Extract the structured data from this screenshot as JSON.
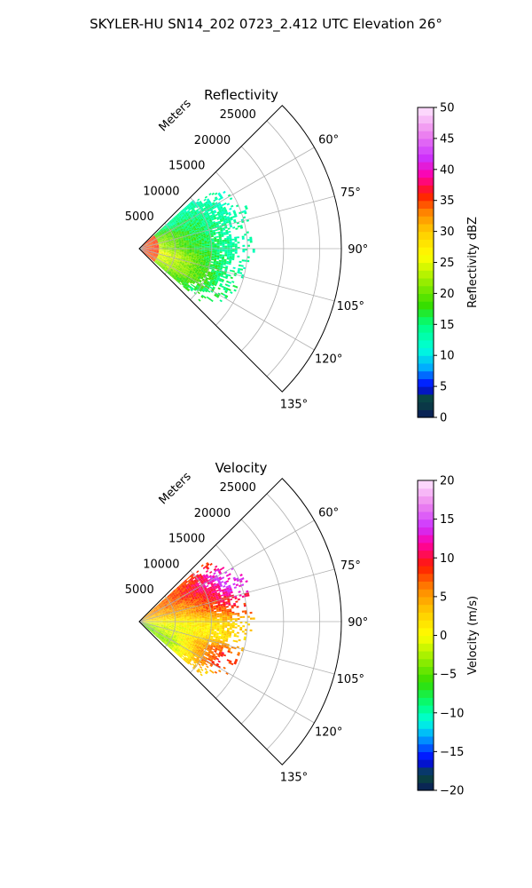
{
  "suptitle": "SKYLER-HU  SN14_202  0723_2.412 UTC Elevation 26°",
  "chart_data": [
    {
      "type": "polar-sector-radar",
      "title": "Reflectivity",
      "field": "reflectivity",
      "range_label": "Meters",
      "r_max": 28000,
      "r_ticks": [
        5000,
        10000,
        15000,
        20000,
        25000
      ],
      "theta_range_deg": [
        45,
        135
      ],
      "theta_ticks_deg": [
        60,
        75,
        90,
        105,
        120,
        135
      ],
      "theta_tick_labels": [
        "60°",
        "75°",
        "90°",
        "105°",
        "120°",
        "135°"
      ],
      "grid": true,
      "data_extent_m": 15500,
      "colorbar": {
        "label": "Reflectivity dBZ",
        "min": 0,
        "max": 50,
        "ticks": [
          0,
          5,
          10,
          15,
          20,
          25,
          30,
          35,
          40,
          45,
          50
        ],
        "stops": [
          [
            0,
            "#0a1a5c"
          ],
          [
            3,
            "#0a4a3a"
          ],
          [
            5,
            "#0000ff"
          ],
          [
            8,
            "#00aaff"
          ],
          [
            11,
            "#00ffdd"
          ],
          [
            15,
            "#00ff80"
          ],
          [
            18,
            "#33dd00"
          ],
          [
            22,
            "#99ee00"
          ],
          [
            26,
            "#ffff00"
          ],
          [
            30,
            "#ffcc00"
          ],
          [
            33,
            "#ff8800"
          ],
          [
            36,
            "#ff1a00"
          ],
          [
            39,
            "#ff00aa"
          ],
          [
            42,
            "#cc33ff"
          ],
          [
            46,
            "#ee88ee"
          ],
          [
            50,
            "#ffe6ff"
          ]
        ]
      },
      "azimuth_profile": [
        {
          "az": 50,
          "rmax": 10000,
          "v_near": 22,
          "v_mid": 14,
          "v_far": 13
        },
        {
          "az": 60,
          "rmax": 12500,
          "v_near": 24,
          "v_mid": 16,
          "v_far": 13
        },
        {
          "az": 70,
          "rmax": 13500,
          "v_near": 25,
          "v_mid": 17,
          "v_far": 13
        },
        {
          "az": 80,
          "rmax": 12500,
          "v_near": 27,
          "v_mid": 18,
          "v_far": 14
        },
        {
          "az": 90,
          "rmax": 13500,
          "v_near": 26,
          "v_mid": 18,
          "v_far": 13
        },
        {
          "az": 100,
          "rmax": 12500,
          "v_near": 30,
          "v_mid": 22,
          "v_far": 14
        },
        {
          "az": 110,
          "rmax": 12000,
          "v_near": 28,
          "v_mid": 22,
          "v_far": 15
        },
        {
          "az": 120,
          "rmax": 11500,
          "v_near": 26,
          "v_mid": 22,
          "v_far": 16
        },
        {
          "az": 128,
          "rmax": 9000,
          "v_near": 24,
          "v_mid": 20,
          "v_far": 16
        }
      ]
    },
    {
      "type": "polar-sector-radar",
      "title": "Velocity",
      "field": "velocity",
      "range_label": "Meters",
      "r_max": 28000,
      "r_ticks": [
        5000,
        10000,
        15000,
        20000,
        25000
      ],
      "theta_range_deg": [
        45,
        135
      ],
      "theta_ticks_deg": [
        60,
        75,
        90,
        105,
        120,
        135
      ],
      "theta_tick_labels": [
        "60°",
        "75°",
        "90°",
        "105°",
        "120°",
        "135°"
      ],
      "grid": true,
      "data_extent_m": 15500,
      "colorbar": {
        "label": "Velocity (m/s)",
        "min": -20,
        "max": 20,
        "ticks": [
          -20,
          -15,
          -10,
          -5,
          0,
          5,
          10,
          15,
          20
        ],
        "stops": [
          [
            -20,
            "#0a1a5c"
          ],
          [
            -18,
            "#0a4a3a"
          ],
          [
            -16,
            "#0000ff"
          ],
          [
            -13,
            "#00aaff"
          ],
          [
            -11,
            "#00ffdd"
          ],
          [
            -9,
            "#00ff80"
          ],
          [
            -6,
            "#33dd00"
          ],
          [
            -3,
            "#99ee00"
          ],
          [
            0,
            "#ffff00"
          ],
          [
            3,
            "#ffcc00"
          ],
          [
            6,
            "#ff8800"
          ],
          [
            9,
            "#ff1a00"
          ],
          [
            12,
            "#ff00aa"
          ],
          [
            14,
            "#cc33ff"
          ],
          [
            17,
            "#ee88ee"
          ],
          [
            20,
            "#ffe6ff"
          ]
        ]
      },
      "azimuth_profile": [
        {
          "az": 50,
          "rmax": 10000,
          "v_near": 4,
          "v_mid": 7,
          "v_far": 9
        },
        {
          "az": 60,
          "rmax": 12500,
          "v_near": 4,
          "v_mid": 8,
          "v_far": 14
        },
        {
          "az": 70,
          "rmax": 13500,
          "v_near": 3,
          "v_mid": 6,
          "v_far": 13
        },
        {
          "az": 80,
          "rmax": 12500,
          "v_near": 2,
          "v_mid": 4,
          "v_far": 9
        },
        {
          "az": 90,
          "rmax": 13500,
          "v_near": 0,
          "v_mid": 1,
          "v_far": 3
        },
        {
          "az": 100,
          "rmax": 12500,
          "v_near": -2,
          "v_mid": 0,
          "v_far": 2
        },
        {
          "az": 110,
          "rmax": 12000,
          "v_near": -4,
          "v_mid": 0,
          "v_far": 9
        },
        {
          "az": 120,
          "rmax": 11500,
          "v_near": -5,
          "v_mid": -2,
          "v_far": 8
        },
        {
          "az": 128,
          "rmax": 9000,
          "v_near": -5,
          "v_mid": -3,
          "v_far": 3
        }
      ]
    }
  ]
}
